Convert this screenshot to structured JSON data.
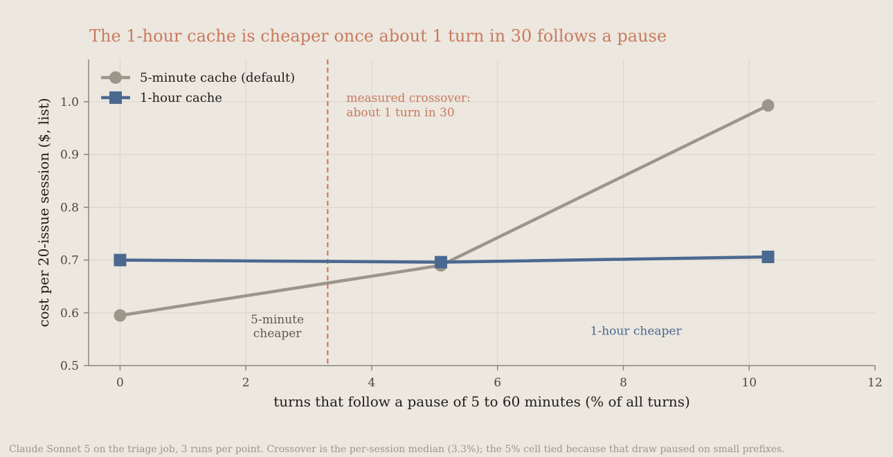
{
  "footer_note": "Claude Sonnet 5 on the triage job, 3 runs per point. Crossover is the per-session median (3.3%); the 5% cell tied because that draw paused on small prefixes.",
  "chart_data": {
    "type": "line",
    "title": "The 1-hour cache is cheaper once about 1 turn in 30 follows a pause",
    "xlabel": "turns that follow a pause of 5 to 60 minutes (% of all turns)",
    "ylabel": "cost per 20-issue session ($, list)",
    "xlim": [
      -0.5,
      12
    ],
    "ylim": [
      0.5,
      1.08
    ],
    "xticks": [
      0,
      2,
      4,
      6,
      8,
      10,
      12
    ],
    "yticks": [
      0.5,
      0.6,
      0.7,
      0.8,
      0.9,
      1.0
    ],
    "xtick_labels": [
      "0",
      "2",
      "4",
      "6",
      "8",
      "10",
      "12"
    ],
    "ytick_labels": [
      "0.5",
      "0.6",
      "0.7",
      "0.8",
      "0.9",
      "1.0"
    ],
    "grid": true,
    "legend_position": "top-left",
    "series": [
      {
        "name": "5-minute cache (default)",
        "marker": "circle",
        "color": "#9b968a",
        "x": [
          0,
          5.1,
          10.3
        ],
        "y": [
          0.595,
          0.69,
          0.993
        ]
      },
      {
        "name": "1-hour cache",
        "marker": "square",
        "color": "#4b6890",
        "x": [
          0,
          5.1,
          10.3
        ],
        "y": [
          0.7,
          0.696,
          0.706
        ]
      }
    ],
    "crossover": {
      "x": 3.3,
      "color": "#c97b5d",
      "label_lines": [
        "measured crossover:",
        "about 1 turn in 30"
      ]
    },
    "region_labels": [
      {
        "lines": [
          "5-minute",
          "cheaper"
        ],
        "color": "#5e5a53",
        "x": 2.5,
        "y": 0.575
      },
      {
        "lines": [
          "1-hour cheaper"
        ],
        "color": "#4b6890",
        "x": 8.2,
        "y": 0.566
      }
    ],
    "colors": {
      "background": "#ece7df",
      "grid": "#d9d3c8",
      "axis": "#8a857c",
      "title": "#c97b5d"
    }
  }
}
